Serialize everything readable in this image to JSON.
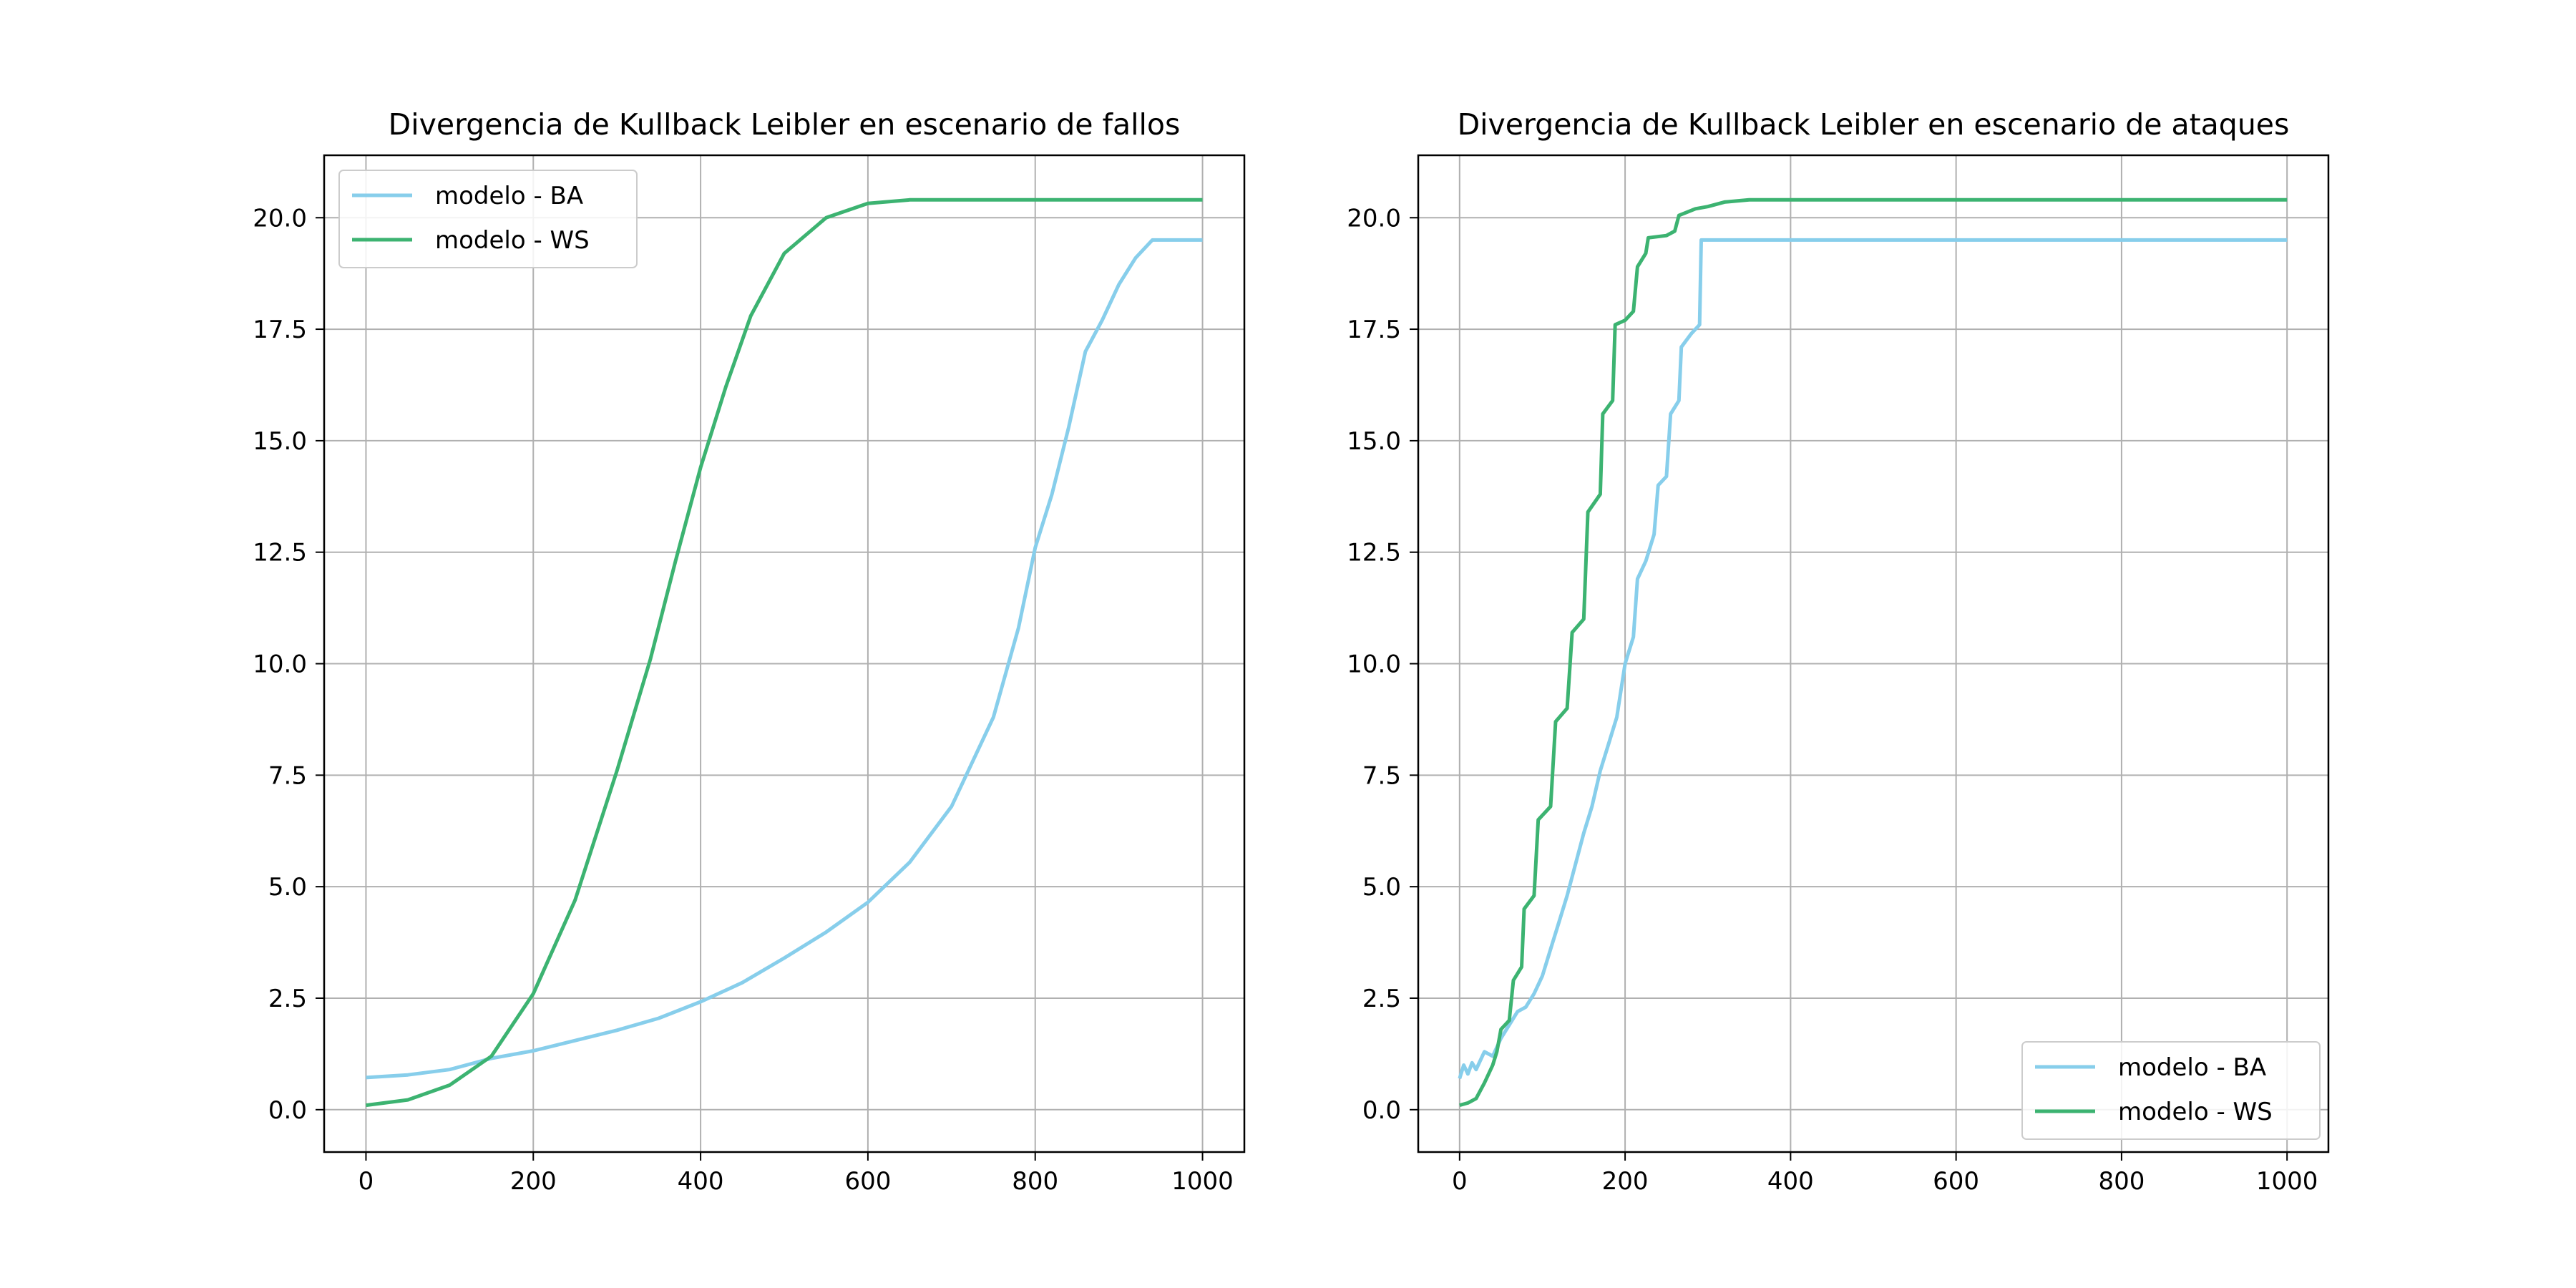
{
  "chart_data": [
    {
      "type": "line",
      "title": "Divergencia de Kullback Leibler en escenario de fallos",
      "xlabel": "",
      "ylabel": "",
      "xlim": [
        -50,
        1050
      ],
      "ylim": [
        -0.95,
        21.4
      ],
      "xticks": [
        0,
        200,
        400,
        600,
        800,
        1000
      ],
      "xtick_labels": [
        "0",
        "200",
        "400",
        "600",
        "800",
        "1000"
      ],
      "yticks": [
        0,
        2.5,
        5,
        7.5,
        10,
        12.5,
        15,
        17.5,
        20
      ],
      "ytick_labels": [
        "0.0",
        "2.5",
        "5.0",
        "7.5",
        "10.0",
        "12.5",
        "15.0",
        "17.5",
        "20.0"
      ],
      "grid": true,
      "legend_position": "upper-left",
      "series": [
        {
          "name": "modelo - BA",
          "color": "#87ceeb",
          "points": [
            [
              0,
              0.72
            ],
            [
              50,
              0.78
            ],
            [
              100,
              0.9
            ],
            [
              150,
              1.15
            ],
            [
              200,
              1.32
            ],
            [
              250,
              1.55
            ],
            [
              300,
              1.78
            ],
            [
              350,
              2.05
            ],
            [
              400,
              2.42
            ],
            [
              450,
              2.85
            ],
            [
              500,
              3.4
            ],
            [
              550,
              3.98
            ],
            [
              600,
              4.65
            ],
            [
              650,
              5.55
            ],
            [
              700,
              6.8
            ],
            [
              750,
              8.8
            ],
            [
              780,
              10.8
            ],
            [
              800,
              12.6
            ],
            [
              820,
              13.8
            ],
            [
              840,
              15.3
            ],
            [
              860,
              17.0
            ],
            [
              880,
              17.7
            ],
            [
              900,
              18.5
            ],
            [
              920,
              19.1
            ],
            [
              940,
              19.5
            ],
            [
              1000,
              19.5
            ]
          ]
        },
        {
          "name": "modelo - WS",
          "color": "#3cb371",
          "points": [
            [
              0,
              0.1
            ],
            [
              50,
              0.22
            ],
            [
              100,
              0.55
            ],
            [
              150,
              1.2
            ],
            [
              200,
              2.6
            ],
            [
              250,
              4.7
            ],
            [
              300,
              7.6
            ],
            [
              340,
              10.1
            ],
            [
              370,
              12.3
            ],
            [
              400,
              14.4
            ],
            [
              430,
              16.2
            ],
            [
              460,
              17.8
            ],
            [
              500,
              19.2
            ],
            [
              550,
              20.0
            ],
            [
              600,
              20.32
            ],
            [
              650,
              20.4
            ],
            [
              1000,
              20.4
            ]
          ]
        }
      ]
    },
    {
      "type": "line",
      "title": "Divergencia de Kullback Leibler en escenario de ataques",
      "xlabel": "",
      "ylabel": "",
      "xlim": [
        -50,
        1050
      ],
      "ylim": [
        -0.95,
        21.4
      ],
      "xticks": [
        0,
        200,
        400,
        600,
        800,
        1000
      ],
      "xtick_labels": [
        "0",
        "200",
        "400",
        "600",
        "800",
        "1000"
      ],
      "yticks": [
        0,
        2.5,
        5,
        7.5,
        10,
        12.5,
        15,
        17.5,
        20
      ],
      "ytick_labels": [
        "0.0",
        "2.5",
        "5.0",
        "7.5",
        "10.0",
        "12.5",
        "15.0",
        "17.5",
        "20.0"
      ],
      "grid": true,
      "legend_position": "lower-right",
      "series": [
        {
          "name": "modelo - BA",
          "color": "#87ceeb",
          "points": [
            [
              0,
              0.7
            ],
            [
              5,
              1.0
            ],
            [
              10,
              0.8
            ],
            [
              15,
              1.05
            ],
            [
              20,
              0.9
            ],
            [
              25,
              1.1
            ],
            [
              30,
              1.3
            ],
            [
              40,
              1.2
            ],
            [
              50,
              1.6
            ],
            [
              60,
              1.9
            ],
            [
              70,
              2.2
            ],
            [
              80,
              2.3
            ],
            [
              90,
              2.6
            ],
            [
              100,
              3.0
            ],
            [
              110,
              3.6
            ],
            [
              120,
              4.2
            ],
            [
              130,
              4.8
            ],
            [
              140,
              5.5
            ],
            [
              150,
              6.2
            ],
            [
              160,
              6.8
            ],
            [
              170,
              7.6
            ],
            [
              180,
              8.2
            ],
            [
              190,
              8.8
            ],
            [
              200,
              10.0
            ],
            [
              210,
              10.6
            ],
            [
              215,
              11.9
            ],
            [
              225,
              12.3
            ],
            [
              235,
              12.9
            ],
            [
              240,
              14.0
            ],
            [
              250,
              14.2
            ],
            [
              255,
              15.6
            ],
            [
              265,
              15.9
            ],
            [
              268,
              17.1
            ],
            [
              280,
              17.4
            ],
            [
              290,
              17.6
            ],
            [
              292,
              19.5
            ],
            [
              1000,
              19.5
            ]
          ]
        },
        {
          "name": "modelo - WS",
          "color": "#3cb371",
          "points": [
            [
              0,
              0.1
            ],
            [
              10,
              0.15
            ],
            [
              20,
              0.25
            ],
            [
              30,
              0.6
            ],
            [
              40,
              1.0
            ],
            [
              45,
              1.3
            ],
            [
              50,
              1.8
            ],
            [
              60,
              2.0
            ],
            [
              65,
              2.9
            ],
            [
              75,
              3.2
            ],
            [
              78,
              4.5
            ],
            [
              90,
              4.8
            ],
            [
              95,
              6.5
            ],
            [
              110,
              6.8
            ],
            [
              116,
              8.7
            ],
            [
              130,
              9.0
            ],
            [
              136,
              10.7
            ],
            [
              150,
              11.0
            ],
            [
              155,
              13.4
            ],
            [
              170,
              13.8
            ],
            [
              173,
              15.6
            ],
            [
              185,
              15.9
            ],
            [
              188,
              17.6
            ],
            [
              200,
              17.7
            ],
            [
              210,
              17.9
            ],
            [
              215,
              18.9
            ],
            [
              225,
              19.2
            ],
            [
              228,
              19.55
            ],
            [
              250,
              19.6
            ],
            [
              260,
              19.7
            ],
            [
              265,
              20.05
            ],
            [
              285,
              20.2
            ],
            [
              300,
              20.25
            ],
            [
              320,
              20.35
            ],
            [
              350,
              20.4
            ],
            [
              1000,
              20.4
            ]
          ]
        }
      ]
    }
  ]
}
